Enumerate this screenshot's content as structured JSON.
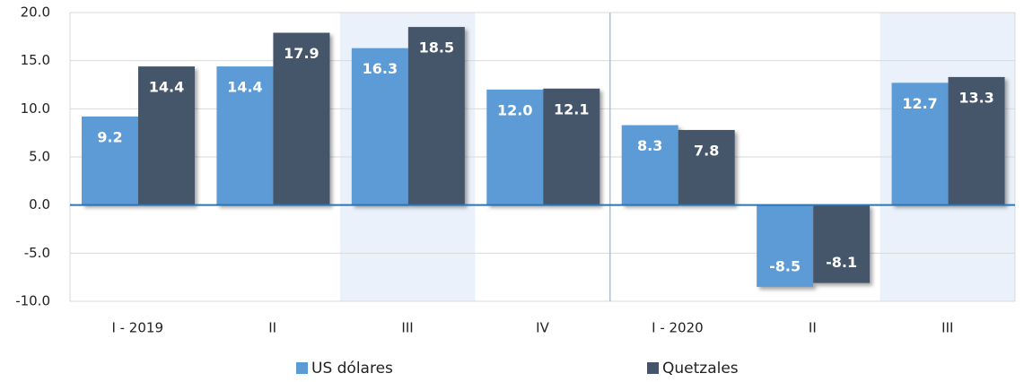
{
  "chart_data": {
    "type": "bar",
    "categories": [
      "I - 2019",
      "II",
      "III",
      "IV",
      "I - 2020",
      "II",
      "III"
    ],
    "series": [
      {
        "name": "US dólares",
        "color": "#5b9bd5",
        "values": [
          9.2,
          14.4,
          16.3,
          12.0,
          8.3,
          -8.5,
          12.7
        ],
        "value_labels": [
          "9.2",
          "14.4",
          "16.3",
          "12.0",
          "8.3",
          "-8.5",
          "12.7"
        ]
      },
      {
        "name": "Quetzales",
        "color": "#44546a",
        "values": [
          14.4,
          17.9,
          18.5,
          12.1,
          7.8,
          -8.1,
          13.3
        ],
        "value_labels": [
          "14.4",
          "17.9",
          "18.5",
          "12.1",
          "7.8",
          "-8.1",
          "13.3"
        ]
      }
    ],
    "ylim": [
      -10,
      20
    ],
    "yticks": [
      {
        "value": -10,
        "label": "-10.0"
      },
      {
        "value": -5,
        "label": "-5.0"
      },
      {
        "value": 0,
        "label": "0.0"
      },
      {
        "value": 5,
        "label": "5.0"
      },
      {
        "value": 10,
        "label": "10.0"
      },
      {
        "value": 15,
        "label": "15.0"
      },
      {
        "value": 20,
        "label": "20.0"
      }
    ],
    "grid": true,
    "legend": "bottom"
  }
}
